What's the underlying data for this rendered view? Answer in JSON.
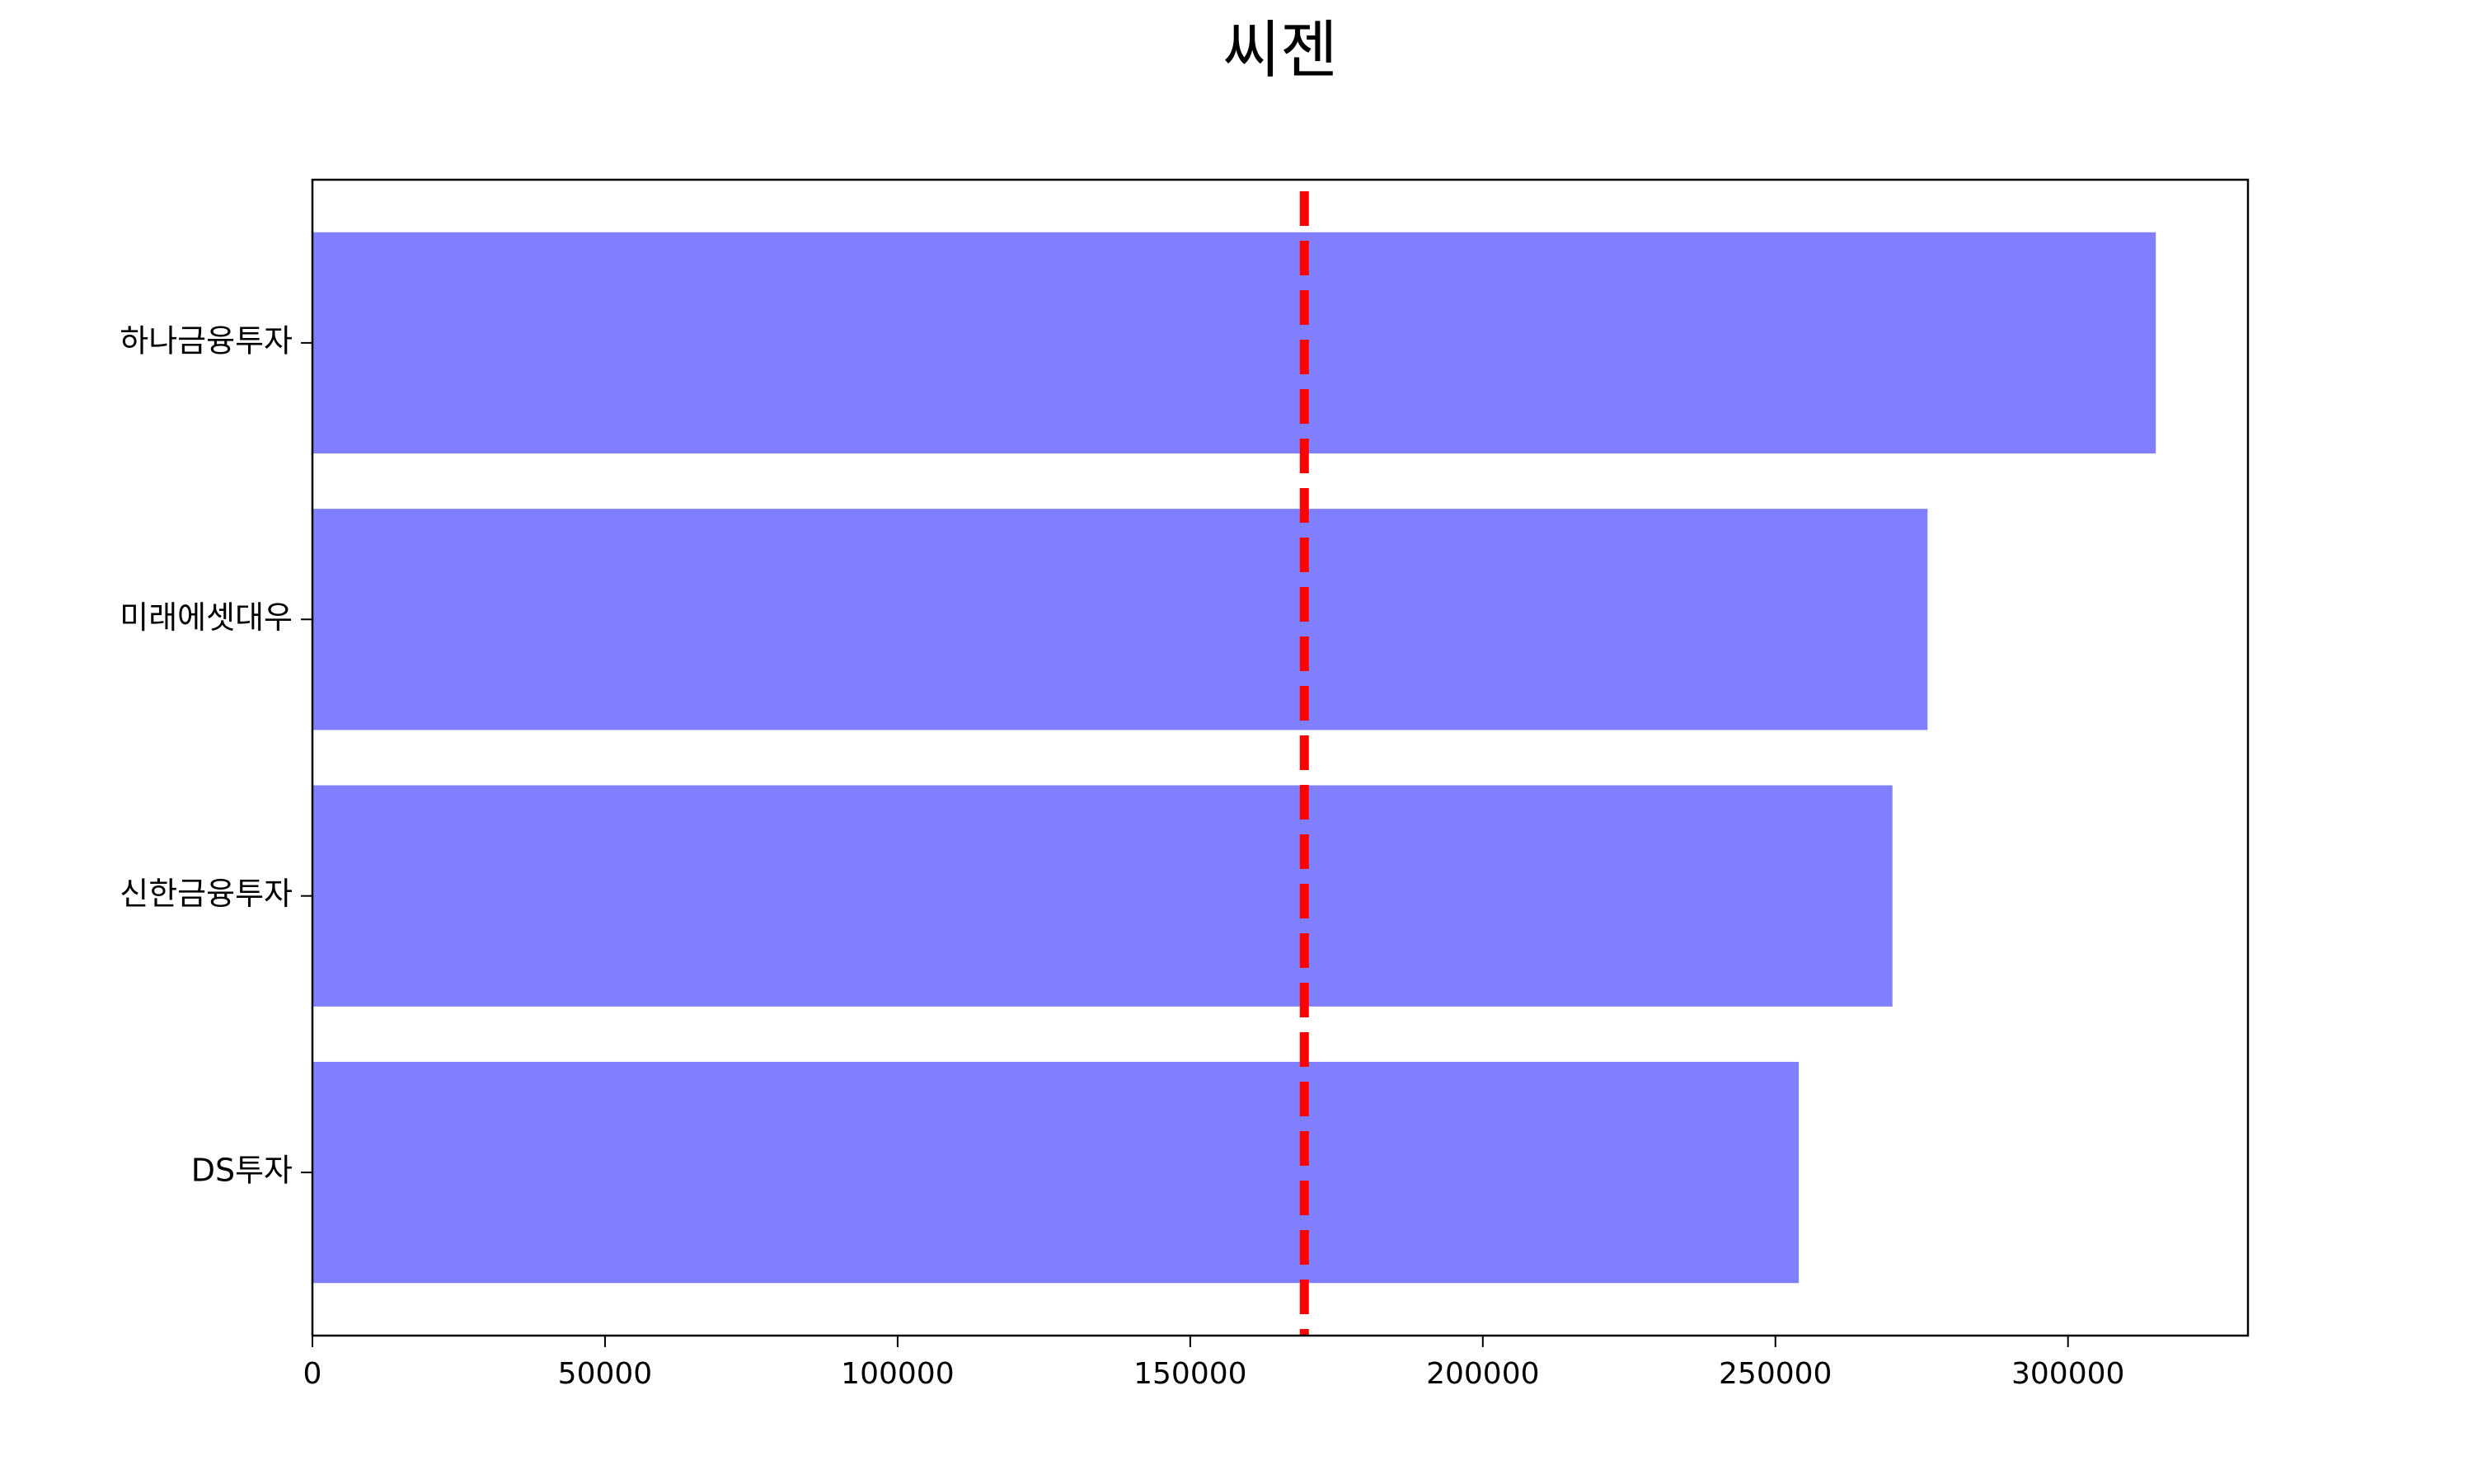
{
  "chart_data": {
    "type": "barh",
    "title": "씨젠",
    "categories": [
      "하나금융투자",
      "미래에셋대우",
      "신한금융투자",
      "DS투자"
    ],
    "values": [
      315000,
      276000,
      270000,
      254000
    ],
    "color": "#8080ff",
    "xlim": [
      0,
      330750
    ],
    "xticks": [
      0,
      50000,
      100000,
      150000,
      200000,
      250000,
      300000
    ],
    "reference_line": {
      "value": 169500,
      "color": "#ff0000"
    },
    "grid": false
  }
}
